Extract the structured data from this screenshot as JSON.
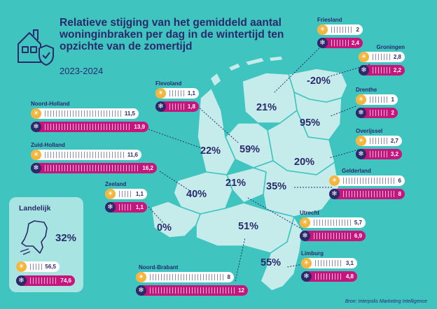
{
  "title": "Relatieve stijging van het gemiddeld aantal woninginbraken per dag in de wintertijd ten opzichte van de zomertijd",
  "subtitle": "2023-2024",
  "source": "Bron: Interpolis Marketing Intelligence",
  "colors": {
    "background": "#3fc4c0",
    "navy": "#2a2a6b",
    "magenta": "#c8157e",
    "sun": "#f5b43a",
    "land": "#c5ecea",
    "panel": "#a8e5e2"
  },
  "national": {
    "name": "Landelijk",
    "increase": "32%",
    "summer": "56,5",
    "winter": "74,6"
  },
  "provinces": [
    {
      "name": "Friesland",
      "increase": "21%",
      "summer": "2",
      "winter": "2,4"
    },
    {
      "name": "Groningen",
      "increase": "-20%",
      "summer": "2,8",
      "winter": "2,2"
    },
    {
      "name": "Drenthe",
      "increase": "95%",
      "summer": "1",
      "winter": "2"
    },
    {
      "name": "Overijssel",
      "increase": "20%",
      "summer": "2,7",
      "winter": "3,2"
    },
    {
      "name": "Gelderland",
      "increase": "35%",
      "summer": "6",
      "winter": "8"
    },
    {
      "name": "Utrecht",
      "increase": "21%",
      "summer": "5,7",
      "winter": "6,9"
    },
    {
      "name": "Limburg",
      "increase": "55%",
      "summer": "3,1",
      "winter": "4,8"
    },
    {
      "name": "Noord-Brabant",
      "increase": "51%",
      "summer": "8",
      "winter": "12"
    },
    {
      "name": "Zeeland",
      "increase": "0%",
      "summer": "1,1",
      "winter": "1,1"
    },
    {
      "name": "Zuid-Holland",
      "increase": "40%",
      "summer": "11,6",
      "winter": "16,2"
    },
    {
      "name": "Noord-Holland",
      "increase": "22%",
      "summer": "11,5",
      "winter": "13,9"
    },
    {
      "name": "Flevoland",
      "increase": "59%",
      "summer": "1,1",
      "winter": "1,8"
    }
  ]
}
